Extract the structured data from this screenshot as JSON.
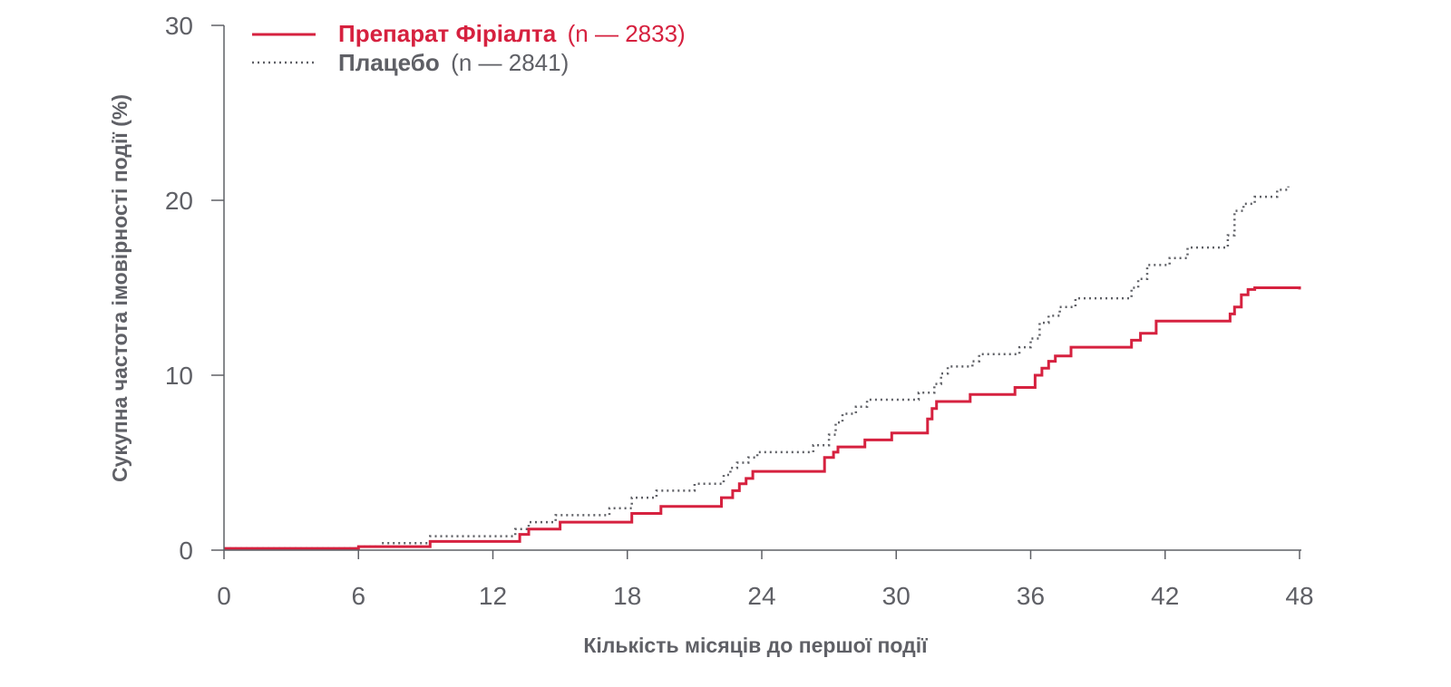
{
  "chart_data": {
    "type": "line",
    "step": true,
    "xlabel": "Кількість місяців до першої події",
    "ylabel": "Сукупна частота імовірності події (%)",
    "xlim": [
      0,
      48
    ],
    "ylim": [
      0,
      30
    ],
    "xticks": [
      "0",
      "6",
      "12",
      "18",
      "24",
      "30",
      "36",
      "42",
      "48"
    ],
    "yticks": [
      "0",
      "10",
      "20",
      "30"
    ],
    "grid": false,
    "legend_position": "top-left",
    "series": [
      {
        "name": "Препарат Фіріалта",
        "n_label": "(n — 2833)",
        "color": "#d6213f",
        "line_style": "solid",
        "x": [
          0,
          6,
          9.2,
          13.2,
          13.6,
          15,
          18.2,
          19.5,
          22.2,
          22.7,
          23,
          23.3,
          23.6,
          26.8,
          27.2,
          27.4,
          28.6,
          29.8,
          31.4,
          31.6,
          31.8,
          33.3,
          35.3,
          36.2,
          36.5,
          36.8,
          37.1,
          37.8,
          40.5,
          40.9,
          41.6,
          44.9,
          45.1,
          45.4,
          45.7,
          46,
          47,
          48
        ],
        "y": [
          0.1,
          0.2,
          0.5,
          0.9,
          1.2,
          1.6,
          2.1,
          2.5,
          3.0,
          3.4,
          3.8,
          4.1,
          4.5,
          5.3,
          5.6,
          5.9,
          6.3,
          6.7,
          7.5,
          8.1,
          8.5,
          8.9,
          9.3,
          10.0,
          10.4,
          10.8,
          11.1,
          11.6,
          12.0,
          12.4,
          13.1,
          13.5,
          13.9,
          14.6,
          14.9,
          15.0,
          15.0,
          14.9
        ]
      },
      {
        "name": "Плацебо",
        "n_label": "(n — 2841)",
        "color": "#5f6066",
        "line_style": "dotted",
        "x": [
          0,
          6,
          7,
          9.2,
          13,
          13.6,
          14.8,
          17.2,
          18.2,
          19.3,
          21,
          22.3,
          22.6,
          22.9,
          23.4,
          23.8,
          26.3,
          27,
          27.3,
          27.6,
          28.2,
          28.7,
          31,
          31.7,
          32,
          32.3,
          33.4,
          33.7,
          35.5,
          36,
          36.4,
          36.8,
          37.3,
          38,
          40.5,
          40.8,
          41.2,
          42.2,
          43,
          44.8,
          45.1,
          45.5,
          46,
          47,
          47.5
        ],
        "y": [
          0.1,
          0.2,
          0.4,
          0.8,
          1.2,
          1.6,
          2.0,
          2.4,
          3.0,
          3.4,
          3.8,
          4.3,
          4.7,
          5.0,
          5.3,
          5.6,
          6.0,
          6.6,
          7.3,
          7.8,
          8.2,
          8.6,
          9.0,
          9.5,
          10.1,
          10.5,
          10.8,
          11.2,
          11.6,
          12.1,
          13.0,
          13.4,
          13.9,
          14.4,
          15.0,
          15.5,
          16.3,
          16.7,
          17.3,
          18.0,
          19.4,
          19.8,
          20.2,
          20.6,
          20.8
        ]
      }
    ]
  }
}
